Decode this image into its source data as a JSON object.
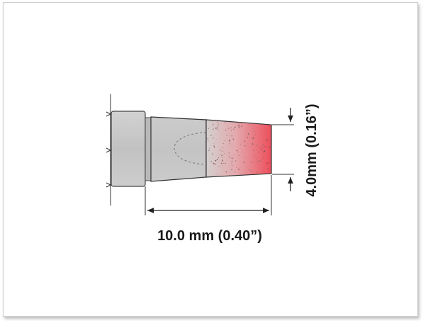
{
  "diagram": {
    "length_label": "10.0 mm (0.40”)",
    "width_label": "4.0mm (0.16”)",
    "tip_color": "#e8505b",
    "body_color": "#c8c8c8"
  }
}
